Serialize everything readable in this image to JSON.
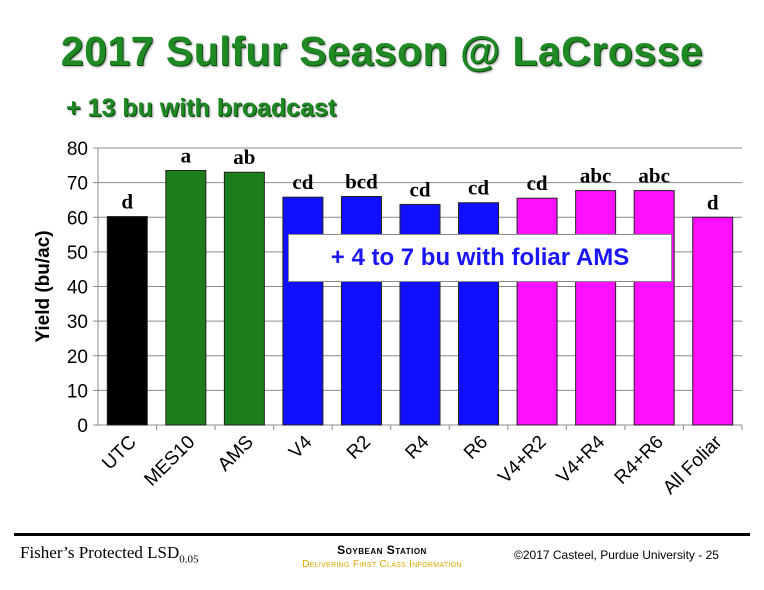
{
  "title": "2017 Sulfur Season @ LaCrosse",
  "subtitle": "+ 13 bu with broadcast",
  "callout": "+ 4 to 7 bu with foliar AMS",
  "footer": {
    "lsd_text": "Fisher’s Protected LSD",
    "lsd_sub": "0.05",
    "station": "Soybean Station",
    "tagline": "Delivering First Class Information",
    "copyright": "©2017 Casteel, Purdue University - 25"
  },
  "colors": {
    "title_green": "#1f8a24",
    "callout_blue": "#1a14ff",
    "tagline_gold": "#e0a800"
  },
  "chart_data": {
    "type": "bar",
    "ylabel": "Yield (bu/ac)",
    "xlabel": "",
    "ylim": [
      0,
      80
    ],
    "yticks": [
      0,
      10,
      20,
      30,
      40,
      50,
      60,
      70,
      80
    ],
    "grid": true,
    "categories": [
      "UTC",
      "MES10",
      "AMS",
      "V4",
      "R2",
      "R4",
      "R6",
      "V4+R2",
      "V4+R4",
      "R4+R6",
      "All Foliar"
    ],
    "values": [
      60.2,
      73.5,
      73.0,
      65.8,
      66.0,
      63.7,
      64.2,
      65.5,
      67.7,
      67.7,
      60.0
    ],
    "letters": [
      "d",
      "a",
      "ab",
      "cd",
      "bcd",
      "cd",
      "cd",
      "cd",
      "abc",
      "abc",
      "d"
    ],
    "bar_colors": [
      "#000000",
      "#1c7d1c",
      "#1c7d1c",
      "#1010ff",
      "#1010ff",
      "#1010ff",
      "#1010ff",
      "#ff10ff",
      "#ff10ff",
      "#ff10ff",
      "#ff10ff"
    ]
  }
}
